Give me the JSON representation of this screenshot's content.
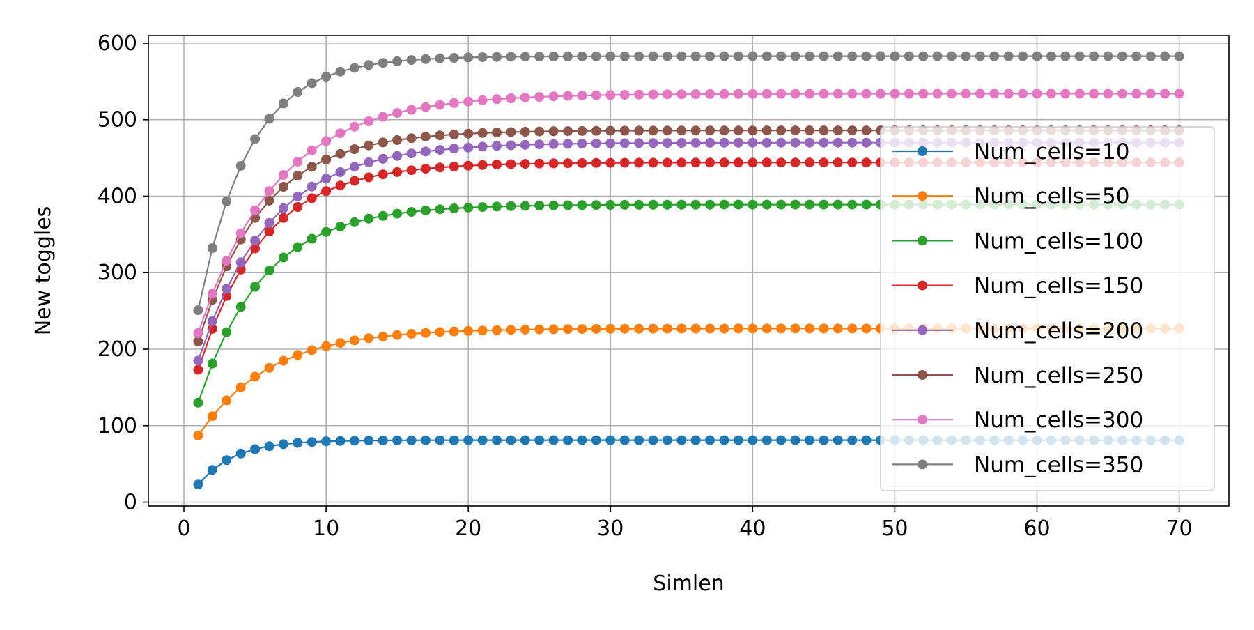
{
  "chart_data": {
    "type": "line",
    "title": "",
    "xlabel": "Simlen",
    "ylabel": "New toggles",
    "xlim": [
      -2.5,
      73.5
    ],
    "ylim": [
      -5,
      610
    ],
    "grid": true,
    "legend_location": "lower right",
    "x_ticks": [
      0,
      10,
      20,
      30,
      40,
      50,
      60,
      70
    ],
    "y_ticks": [
      0,
      100,
      200,
      300,
      400,
      500,
      600
    ],
    "x": [
      1,
      2,
      3,
      4,
      5,
      6,
      7,
      8,
      9,
      10,
      11,
      12,
      13,
      14,
      15,
      16,
      17,
      18,
      19,
      20,
      21,
      22,
      23,
      24,
      25,
      26,
      27,
      28,
      29,
      30,
      31,
      32,
      33,
      34,
      35,
      36,
      37,
      38,
      39,
      40,
      41,
      42,
      43,
      44,
      45,
      46,
      47,
      48,
      49,
      50,
      51,
      52,
      53,
      54,
      55,
      56,
      57,
      58,
      59,
      60,
      61,
      62,
      63,
      64,
      65,
      66,
      67,
      68,
      69,
      70
    ],
    "series": [
      {
        "name": "Num_cells=10",
        "color": "#1f77b4",
        "curve": {
          "start": 23,
          "plateau": 81,
          "rate": 0.4
        }
      },
      {
        "name": "Num_cells=50",
        "color": "#ff7f0e",
        "curve": {
          "start": 87,
          "plateau": 227,
          "rate": 0.2
        }
      },
      {
        "name": "Num_cells=100",
        "color": "#2ca02c",
        "curve": {
          "start": 130,
          "plateau": 389,
          "rate": 0.22
        }
      },
      {
        "name": "Num_cells=150",
        "color": "#d62728",
        "curve": {
          "start": 173,
          "plateau": 444,
          "rate": 0.22
        }
      },
      {
        "name": "Num_cells=200",
        "color": "#9467bd",
        "curve": {
          "start": 185,
          "plateau": 470,
          "rate": 0.2
        }
      },
      {
        "name": "Num_cells=250",
        "color": "#8c564b",
        "curve": {
          "start": 210,
          "plateau": 486,
          "rate": 0.22
        }
      },
      {
        "name": "Num_cells=300",
        "color": "#e377c2",
        "curve": {
          "start": 221,
          "plateau": 534,
          "rate": 0.18
        }
      },
      {
        "name": "Num_cells=350",
        "color": "#7f7f7f",
        "curve": {
          "start": 251,
          "plateau": 583,
          "rate": 0.28
        }
      }
    ]
  }
}
